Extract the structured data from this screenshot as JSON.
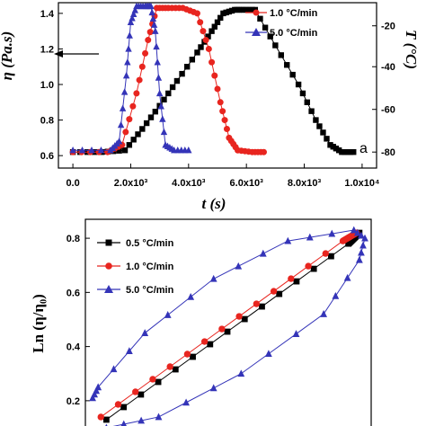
{
  "chart_data": [
    {
      "type": "line",
      "panel_label": "a",
      "xlabel": "t (s)",
      "ylabel_left": "η (Pa.s)",
      "ylabel_right": "T (°C)",
      "x_ticks": [
        "0.0",
        "2.0x10³",
        "4.0x10³",
        "6.0x10³",
        "8.0x10³",
        "1.0x10⁴"
      ],
      "y_ticks_left": [
        "0.6",
        "0.8",
        "1.0",
        "1.2",
        "1.4"
      ],
      "y_ticks_right": [
        "-80",
        "-60",
        "-40",
        "-20"
      ],
      "xlim": [
        -500,
        10500
      ],
      "ylim_left": [
        0.53,
        1.46
      ],
      "series": [
        {
          "name": "0.5 °C/min",
          "color": "#000000",
          "marker": "square",
          "x": [
            0,
            1000,
            1800,
            2400,
            3000,
            3600,
            4300,
            4800,
            5200,
            5600,
            5900,
            6300,
            7000,
            7800,
            8400,
            8900,
            9300,
            9700
          ],
          "y": [
            0.62,
            0.62,
            0.63,
            0.75,
            0.88,
            1.02,
            1.18,
            1.3,
            1.4,
            1.42,
            1.42,
            1.42,
            1.22,
            1.0,
            0.8,
            0.66,
            0.62,
            0.62
          ]
        },
        {
          "name": "1.0 °C/min",
          "color": "#e8251f",
          "marker": "circle",
          "x": [
            0,
            1200,
            1700,
            2200,
            2600,
            2900,
            3300,
            3800,
            4300,
            4700,
            5100,
            5400,
            5700,
            6200,
            6600
          ],
          "y": [
            0.62,
            0.62,
            0.66,
            0.95,
            1.25,
            1.43,
            1.43,
            1.43,
            1.4,
            1.2,
            0.9,
            0.7,
            0.63,
            0.62,
            0.62
          ]
        },
        {
          "name": "5.0 °C/min",
          "color": "#3434b8",
          "marker": "triangle",
          "x": [
            0,
            1300,
            1600,
            1850,
            2000,
            2200,
            2500,
            2700,
            2850,
            3000,
            3200,
            3500,
            4000
          ],
          "y": [
            0.63,
            0.63,
            0.68,
            1.05,
            1.35,
            1.44,
            1.44,
            1.44,
            1.3,
            0.95,
            0.66,
            0.63,
            0.63
          ]
        }
      ],
      "legend": [
        "1.0 °C/min",
        "5.0 °C/min"
      ]
    },
    {
      "type": "line",
      "ylabel": "Ln (η/η₀)",
      "y_ticks": [
        "0.2",
        "0.4",
        "0.6",
        "0.8"
      ],
      "ylim": [
        0.1,
        0.87
      ],
      "xlim": [
        0,
        1
      ],
      "series": [
        {
          "name": "0.5 °C/min",
          "color": "#000000",
          "marker": "square",
          "x": [
            0.06,
            0.94,
            0.98
          ],
          "y": [
            0.13,
            0.78,
            0.82
          ]
        },
        {
          "name": "1.0 °C/min",
          "color": "#e8251f",
          "marker": "circle",
          "x": [
            0.04,
            0.92,
            0.97
          ],
          "y": [
            0.14,
            0.79,
            0.82
          ]
        },
        {
          "name": "5.0 °C/min",
          "color": "#3434b8",
          "marker": "triangle",
          "x": [
            0.01,
            0.03,
            0.2,
            0.45,
            0.72,
            0.96,
            1.0,
            0.98,
            0.85,
            0.55,
            0.25,
            0.06
          ],
          "y": [
            0.21,
            0.25,
            0.45,
            0.65,
            0.79,
            0.83,
            0.8,
            0.72,
            0.52,
            0.3,
            0.14,
            0.1
          ]
        }
      ],
      "legend": [
        "0.5 °C/min",
        "1.0 °C/min",
        "5.0 °C/min"
      ]
    }
  ],
  "legend_a": {
    "item1": "1.0 °C/min",
    "item2": "5.0 °C/min"
  },
  "legend_b": {
    "item1": "0.5 °C/min",
    "item2": "1.0 °C/min",
    "item3": "5.0 °C/min"
  },
  "labels": {
    "panel_a": "a",
    "xlabel": "t (s)",
    "ylabel_left": "η (Pa.s)",
    "ylabel_right": "T (°C)",
    "ylabel_b": "Ln (η/η₀)"
  }
}
